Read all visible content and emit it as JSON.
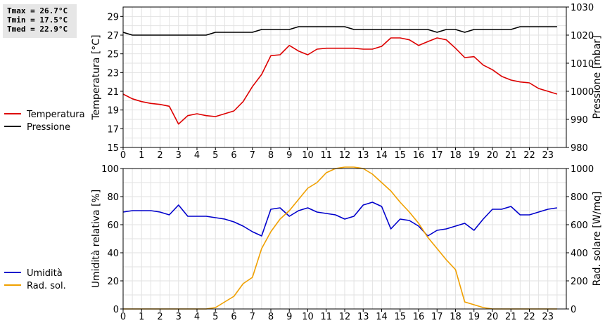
{
  "stats": {
    "tmax": "Tmax = 26.7°C",
    "tmin": "Tmin = 17.5°C",
    "tmed": "Tmed = 22.9°C"
  },
  "chart_data": [
    {
      "type": "line",
      "ylabel_left": "Temperatura [°C]",
      "ylabel_right": "Pressione [mbar]",
      "xlim": [
        0,
        24
      ],
      "ylim_left": [
        15,
        30
      ],
      "ylim_right": [
        980,
        1030
      ],
      "x_ticks": [
        "0",
        "1",
        "2",
        "3",
        "4",
        "5",
        "6",
        "7",
        "8",
        "9",
        "10",
        "11",
        "12",
        "13",
        "14",
        "15",
        "16",
        "17",
        "18",
        "19",
        "20",
        "21",
        "22",
        "23"
      ],
      "y_ticks_left": [
        "15",
        "17",
        "19",
        "21",
        "23",
        "25",
        "27",
        "29"
      ],
      "y_ticks_right": [
        "980",
        "990",
        "1000",
        "1010",
        "1020",
        "1030"
      ],
      "grid": true,
      "legend_position": "left",
      "series": [
        {
          "name": "Temperatura",
          "axis": "left",
          "color": "#dd0000",
          "x": [
            0,
            0.5,
            1,
            1.5,
            2,
            2.5,
            3,
            3.5,
            4,
            4.5,
            5,
            5.5,
            6,
            6.5,
            7,
            7.5,
            8,
            8.5,
            9,
            9.5,
            10,
            10.5,
            11,
            11.5,
            12,
            12.5,
            13,
            13.5,
            14,
            14.5,
            15,
            15.5,
            16,
            16.5,
            17,
            17.5,
            18,
            18.5,
            19,
            19.5,
            20,
            20.5,
            21,
            21.5,
            22,
            22.5,
            23,
            23.5
          ],
          "values": [
            20.7,
            20.2,
            19.9,
            19.7,
            19.6,
            19.4,
            17.5,
            18.4,
            18.6,
            18.4,
            18.3,
            18.6,
            18.9,
            19.9,
            21.5,
            22.8,
            24.8,
            24.9,
            25.9,
            25.3,
            24.9,
            25.5,
            25.6,
            25.6,
            25.6,
            25.6,
            25.5,
            25.5,
            25.8,
            26.7,
            26.7,
            26.5,
            25.9,
            26.3,
            26.7,
            26.5,
            25.6,
            24.6,
            24.7,
            23.8,
            23.3,
            22.6,
            22.2,
            22.0,
            21.9,
            21.3,
            21.0,
            20.7
          ]
        },
        {
          "name": "Pressione",
          "axis": "right",
          "color": "#000000",
          "x": [
            0,
            0.5,
            1,
            1.5,
            2,
            2.5,
            3,
            3.5,
            4,
            4.5,
            5,
            5.5,
            6,
            6.5,
            7,
            7.5,
            8,
            8.5,
            9,
            9.5,
            10,
            10.5,
            11,
            11.5,
            12,
            12.5,
            13,
            13.5,
            14,
            14.5,
            15,
            15.5,
            16,
            16.5,
            17,
            17.5,
            18,
            18.5,
            19,
            19.5,
            20,
            20.5,
            21,
            21.5,
            22,
            22.5,
            23,
            23.5
          ],
          "values": [
            1021,
            1020,
            1020,
            1020,
            1020,
            1020,
            1020,
            1020,
            1020,
            1020,
            1021,
            1021,
            1021,
            1021,
            1021,
            1022,
            1022,
            1022,
            1022,
            1023,
            1023,
            1023,
            1023,
            1023,
            1023,
            1022,
            1022,
            1022,
            1022,
            1022,
            1022,
            1022,
            1022,
            1022,
            1021,
            1022,
            1022,
            1021,
            1022,
            1022,
            1022,
            1022,
            1022,
            1023,
            1023,
            1023,
            1023,
            1023
          ]
        }
      ]
    },
    {
      "type": "line",
      "ylabel_left": "Umidità relativa [%]",
      "ylabel_right": "Rad. solare [W/mq]",
      "xlim": [
        0,
        24
      ],
      "ylim_left": [
        0,
        100
      ],
      "ylim_right": [
        0,
        1000
      ],
      "x_ticks": [
        "0",
        "1",
        "2",
        "3",
        "4",
        "5",
        "6",
        "7",
        "8",
        "9",
        "10",
        "11",
        "12",
        "13",
        "14",
        "15",
        "16",
        "17",
        "18",
        "19",
        "20",
        "21",
        "22",
        "23"
      ],
      "y_ticks_left": [
        "0",
        "20",
        "40",
        "60",
        "80",
        "100"
      ],
      "y_ticks_right": [
        "0",
        "200",
        "400",
        "600",
        "800",
        "1000"
      ],
      "grid": true,
      "legend_position": "left",
      "series": [
        {
          "name": "Umidità",
          "axis": "left",
          "color": "#0000cc",
          "x": [
            0,
            0.5,
            1,
            1.5,
            2,
            2.5,
            3,
            3.5,
            4,
            4.5,
            5,
            5.5,
            6,
            6.5,
            7,
            7.5,
            8,
            8.5,
            9,
            9.5,
            10,
            10.5,
            11,
            11.5,
            12,
            12.5,
            13,
            13.5,
            14,
            14.5,
            15,
            15.5,
            16,
            16.5,
            17,
            17.5,
            18,
            18.5,
            19,
            19.5,
            20,
            20.5,
            21,
            21.5,
            22,
            22.5,
            23,
            23.5
          ],
          "values": [
            69,
            70,
            70,
            70,
            69,
            67,
            74,
            66,
            66,
            66,
            65,
            64,
            62,
            59,
            55,
            52,
            71,
            72,
            66,
            70,
            72,
            69,
            68,
            67,
            64,
            66,
            74,
            76,
            73,
            57,
            64,
            63,
            59,
            52,
            56,
            57,
            59,
            61,
            56,
            64,
            71,
            71,
            73,
            67,
            67,
            69,
            71,
            72
          ]
        },
        {
          "name": "Rad. sol.",
          "axis": "right",
          "color": "#f0a000",
          "x": [
            0,
            0.5,
            1,
            1.5,
            2,
            2.5,
            3,
            3.5,
            4,
            4.5,
            5,
            5.5,
            6,
            6.5,
            7,
            7.5,
            8,
            8.5,
            9,
            9.5,
            10,
            10.5,
            11,
            11.5,
            12,
            12.5,
            13,
            13.5,
            14,
            14.5,
            15,
            15.5,
            16,
            16.5,
            17,
            17.5,
            18,
            18.5,
            19,
            19.5,
            20,
            20.5,
            21,
            21.5,
            22,
            22.5,
            23,
            23.5
          ],
          "values": [
            0,
            0,
            0,
            0,
            0,
            0,
            0,
            0,
            0,
            0,
            10,
            50,
            90,
            180,
            225,
            430,
            550,
            640,
            700,
            780,
            860,
            900,
            970,
            1000,
            1010,
            1010,
            1000,
            960,
            900,
            840,
            760,
            690,
            610,
            510,
            430,
            350,
            280,
            50,
            30,
            10,
            0,
            0,
            0,
            0,
            0,
            0,
            0,
            0
          ]
        }
      ]
    }
  ]
}
